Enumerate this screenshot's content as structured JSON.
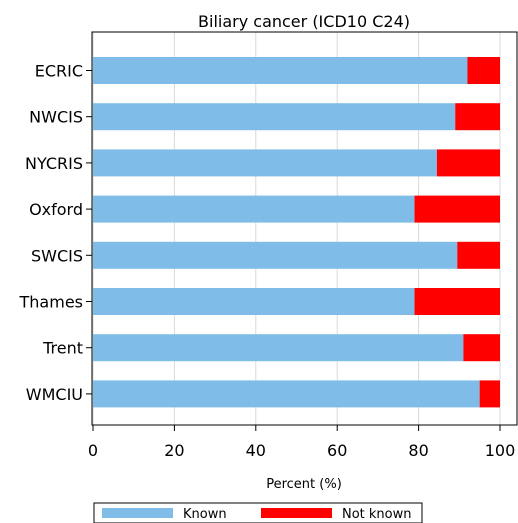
{
  "chart_data": {
    "type": "bar",
    "orientation": "horizontal",
    "stacked": true,
    "title": "Biliary cancer (ICD10 C24)",
    "xlabel": "Percent (%)",
    "ylabel": "",
    "xlim": [
      0,
      100
    ],
    "xticks": [
      0,
      20,
      40,
      60,
      80,
      100
    ],
    "grid": true,
    "legend_position": "bottom",
    "categories": [
      "ECRIC",
      "NWCIS",
      "NYCRIS",
      "Oxford",
      "SWCIS",
      "Thames",
      "Trent",
      "WMCIU"
    ],
    "series": [
      {
        "name": "Known",
        "color": "#7fbde8",
        "values": [
          92,
          89,
          84.5,
          79,
          89.5,
          79,
          91,
          95
        ]
      },
      {
        "name": "Not known",
        "color": "#ff0000",
        "values": [
          8,
          11,
          15.5,
          21,
          10.5,
          21,
          9,
          5
        ]
      }
    ]
  }
}
